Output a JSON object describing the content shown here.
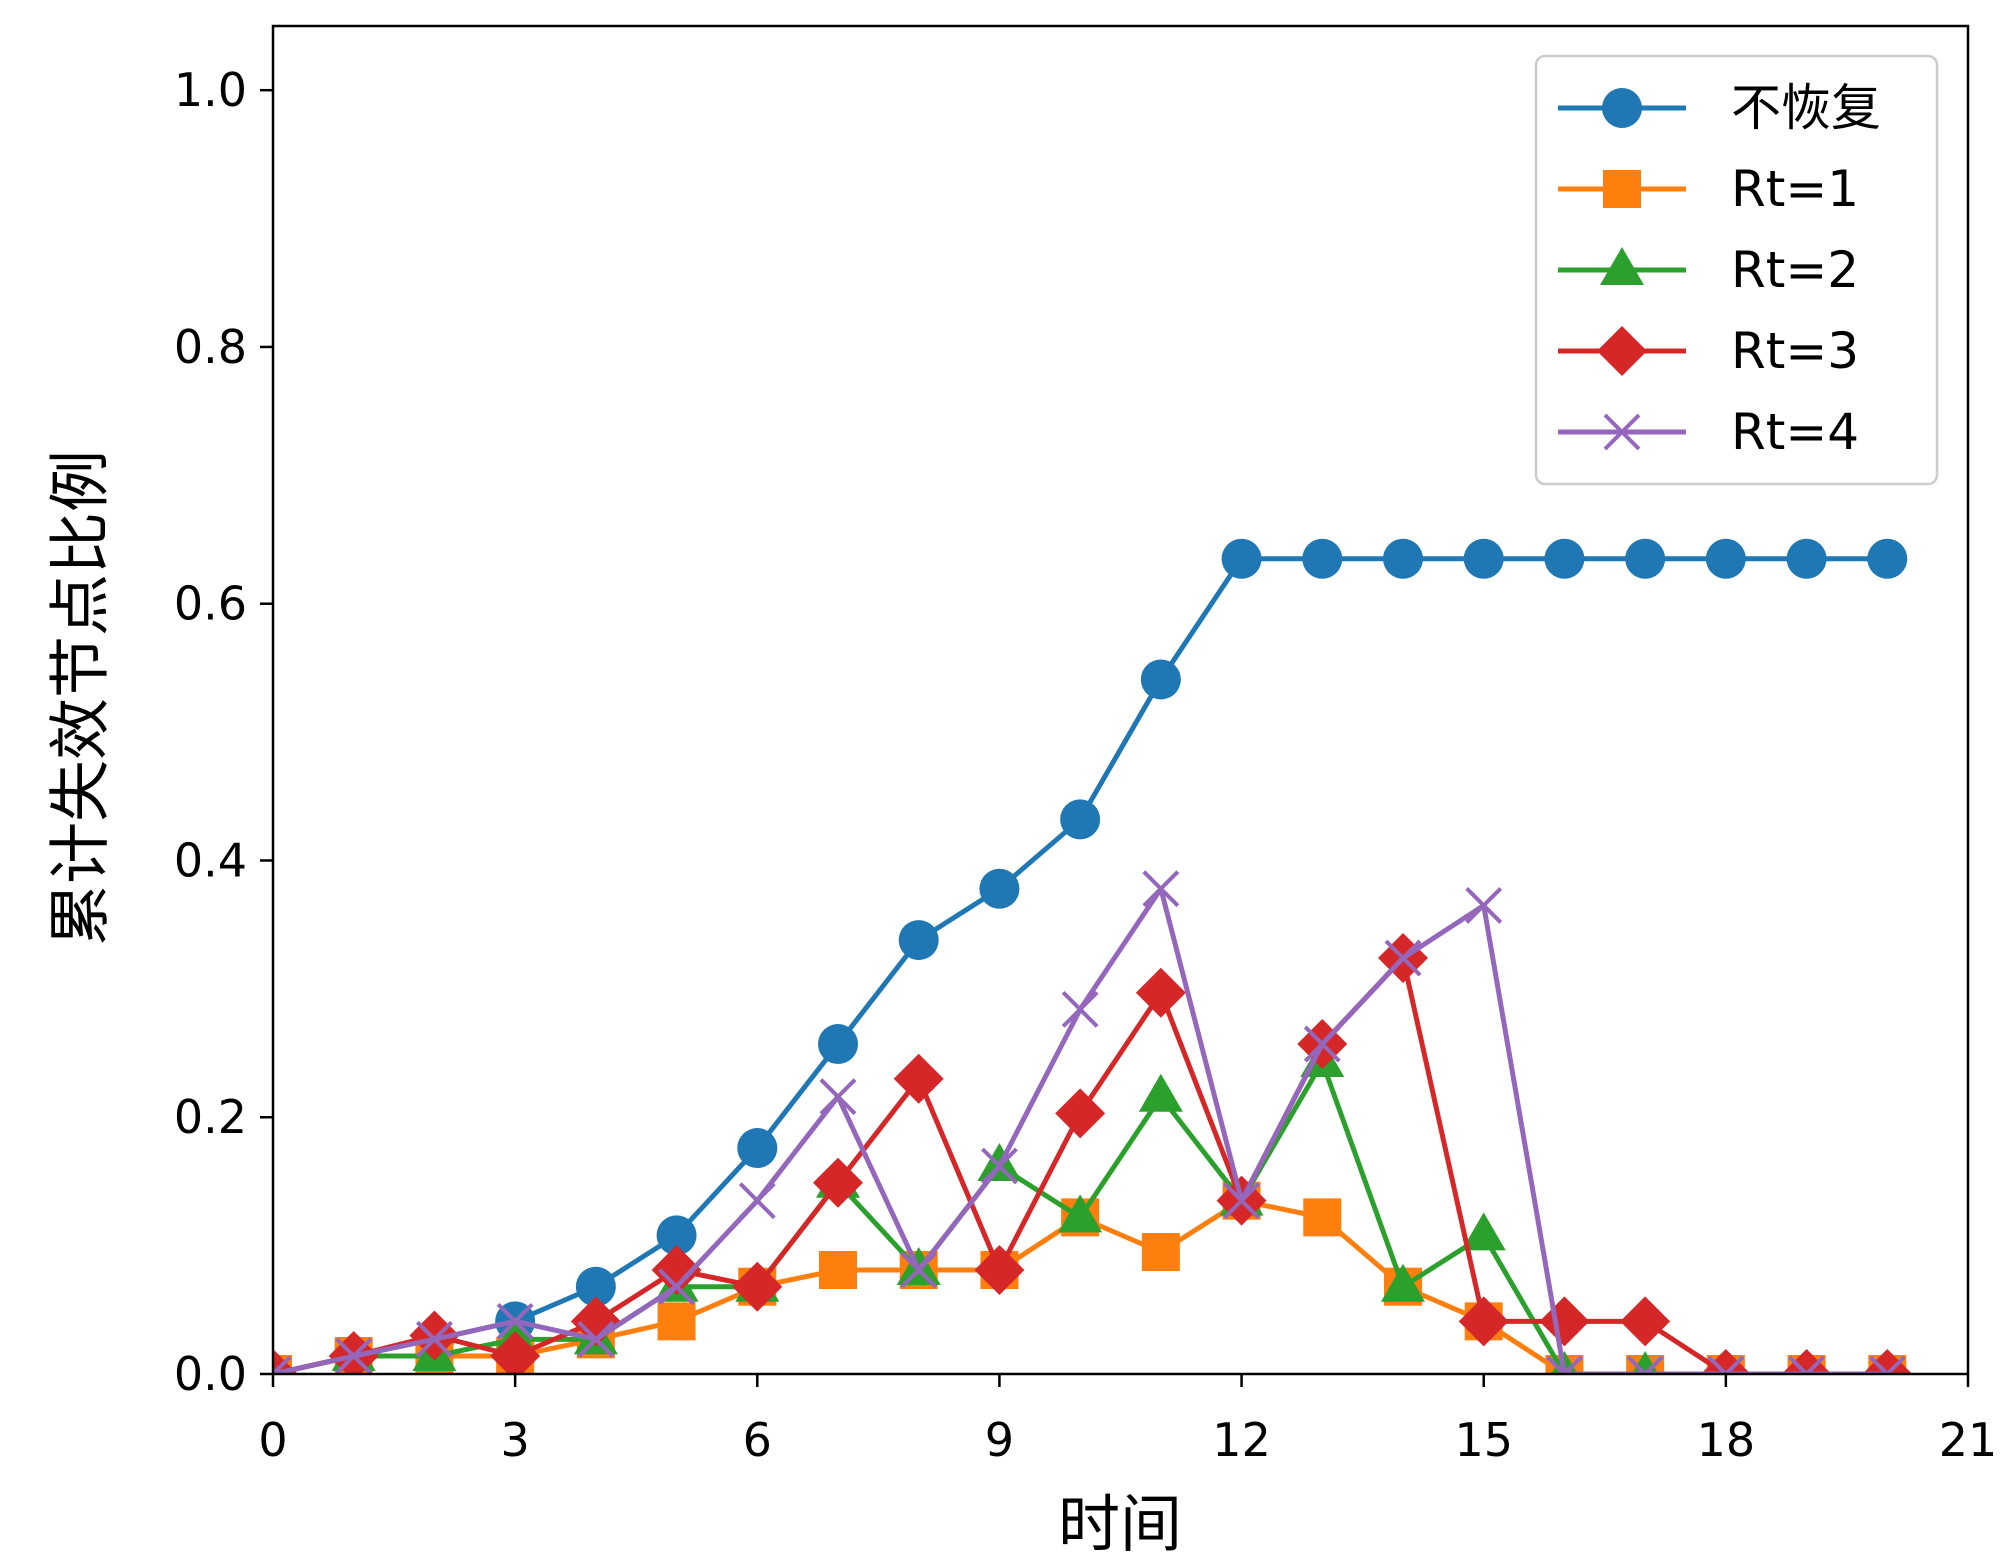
{
  "chart_data": {
    "type": "line",
    "title": "",
    "xlabel": "时间",
    "ylabel": "累计失效节点比例",
    "xlim": [
      0,
      21
    ],
    "ylim": [
      0,
      1.05
    ],
    "xticks": [
      0,
      3,
      6,
      9,
      12,
      15,
      18,
      21
    ],
    "xtick_labels": [
      "0",
      "3",
      "6",
      "9",
      "12",
      "15",
      "18",
      "21"
    ],
    "yticks": [
      0,
      0.2,
      0.4,
      0.6,
      0.8,
      1.0
    ],
    "ytick_labels": [
      "0.0",
      "0.2",
      "0.4",
      "0.6",
      "0.8",
      "1.0"
    ],
    "grid": false,
    "legend_position": "top-right",
    "x": [
      0,
      1,
      2,
      3,
      4,
      5,
      6,
      7,
      8,
      9,
      10,
      11,
      12,
      13,
      14,
      15,
      16,
      17,
      18,
      19,
      20
    ],
    "series": [
      {
        "name": "不恢复",
        "color": "#1f77b4",
        "marker": "circle",
        "values": [
          0,
          0.014,
          0.027,
          0.041,
          0.068,
          0.108,
          0.176,
          0.257,
          0.338,
          0.378,
          0.432,
          0.541,
          0.635,
          0.635,
          0.635,
          0.635,
          0.635,
          0.635,
          0.635,
          0.635,
          0.635
        ]
      },
      {
        "name": "Rt=1",
        "color": "#ff7f0e",
        "marker": "square",
        "values": [
          0,
          0.014,
          0.014,
          0.014,
          0.027,
          0.041,
          0.068,
          0.081,
          0.081,
          0.081,
          0.122,
          0.095,
          0.135,
          0.122,
          0.068,
          0.041,
          0,
          0,
          0,
          0,
          0
        ]
      },
      {
        "name": "Rt=2",
        "color": "#2ca02c",
        "marker": "triangle",
        "values": [
          0,
          0.014,
          0.014,
          0.027,
          0.027,
          0.068,
          0.068,
          0.149,
          0.081,
          0.162,
          0.122,
          0.216,
          0.135,
          0.243,
          0.068,
          0.108,
          0,
          0,
          0,
          0,
          0
        ]
      },
      {
        "name": "Rt=3",
        "color": "#d62728",
        "marker": "diamond",
        "values": [
          0,
          0.014,
          0.03,
          0.014,
          0.041,
          0.081,
          0.068,
          0.149,
          0.23,
          0.081,
          0.203,
          0.297,
          0.135,
          0.257,
          0.324,
          0.041,
          0.041,
          0.041,
          0,
          0,
          0
        ]
      },
      {
        "name": "Rt=4",
        "color": "#9467bd",
        "marker": "x",
        "values": [
          0,
          0.014,
          0.027,
          0.041,
          0.027,
          0.068,
          0.135,
          0.216,
          0.081,
          0.162,
          0.284,
          0.378,
          0.135,
          0.257,
          0.324,
          0.365,
          0,
          0,
          0,
          0,
          0
        ]
      }
    ]
  }
}
